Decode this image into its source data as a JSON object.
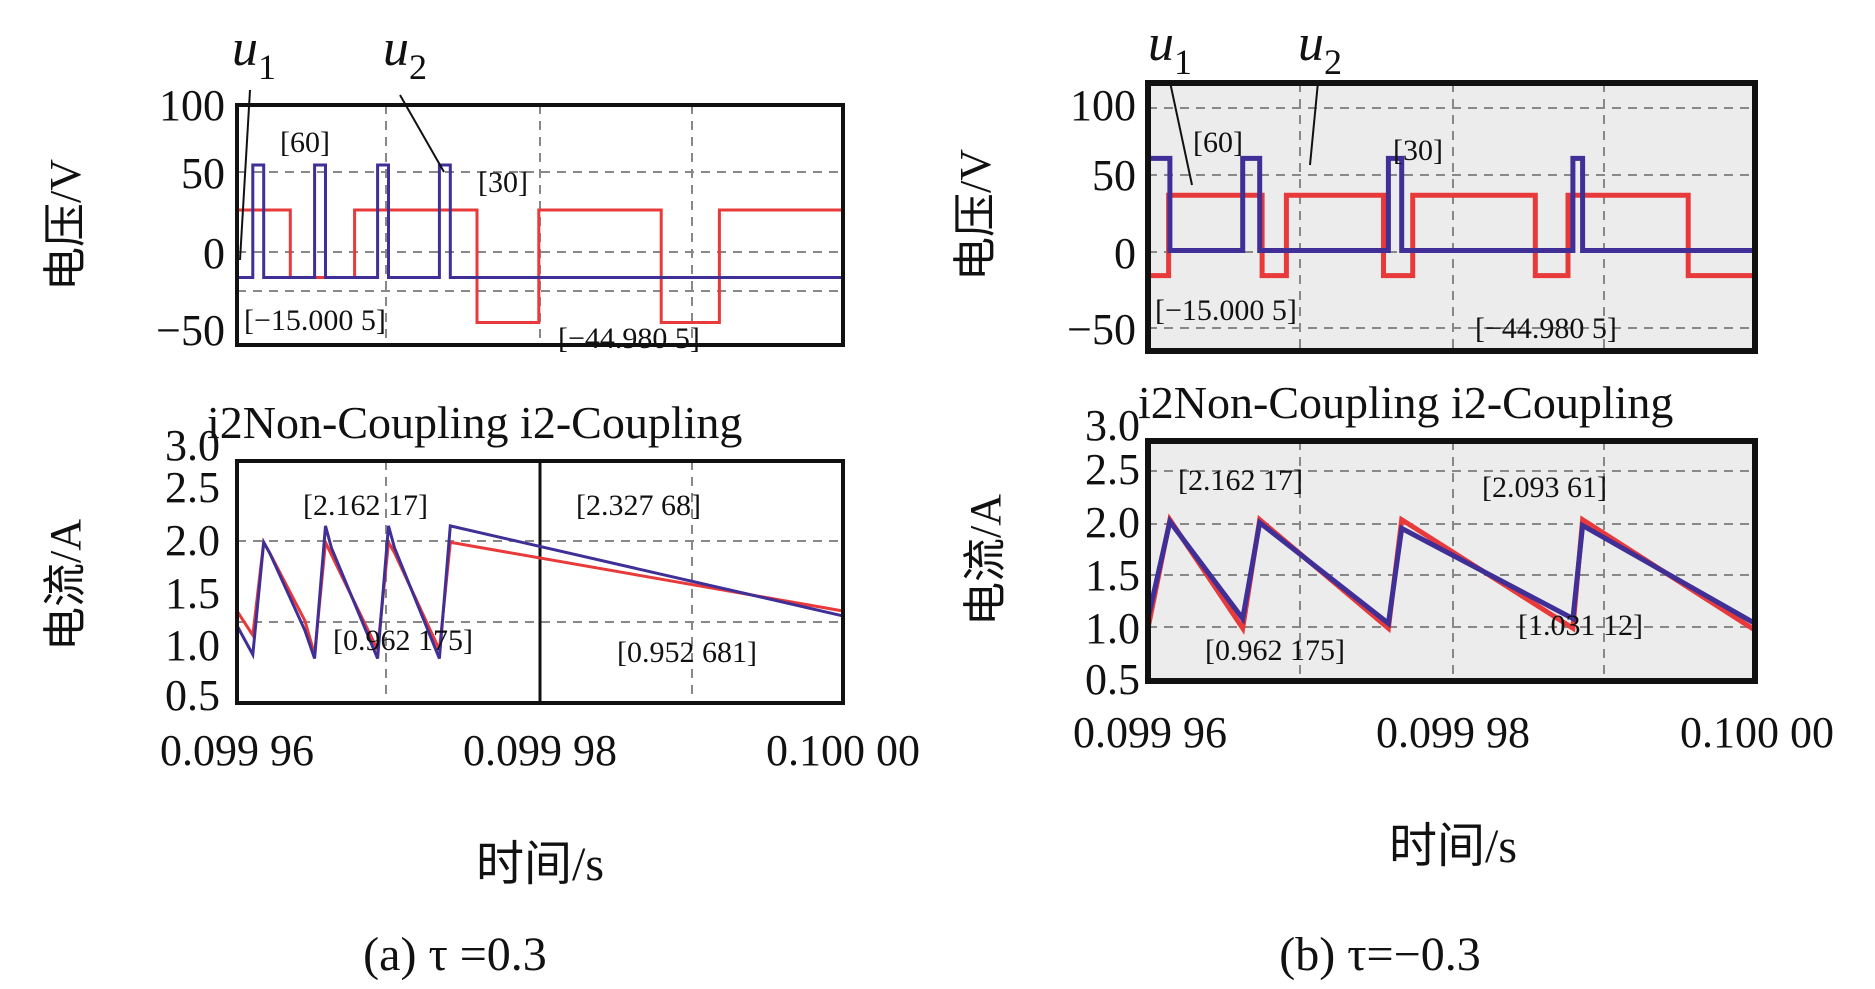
{
  "colors": {
    "u1": "#e83a3a",
    "u2": "#3f2f96",
    "axis": "#111111",
    "grid": "#888888"
  },
  "labels": {
    "u1_main": "u",
    "u1_sub": "1",
    "u2_main": "u",
    "u2_sub": "2",
    "legend": "i2Non-Coupling i2-Coupling"
  },
  "chart_data": [
    {
      "type": "line",
      "panel": "a",
      "caption": "(a) τ =0.3",
      "ylabel": "电压/V",
      "ylim": [
        -60,
        100
      ],
      "yticks": [
        "100",
        "50",
        "0",
        "−50"
      ],
      "xlim": [
        0.09995,
        0.1
      ],
      "series": [
        {
          "name": "u1",
          "x": [
            0.09995,
            0.0999544,
            0.0999544,
            0.0999597,
            0.0999597,
            0.0999698,
            0.0999698,
            0.0999749,
            0.0999749,
            0.099985,
            0.099985,
            0.0999898,
            0.0999898,
            0.1
          ],
          "y": [
            30,
            30,
            -15,
            -15,
            30,
            30,
            -45,
            -45,
            30,
            30,
            -45,
            -45,
            30,
            30
          ]
        },
        {
          "name": "u2",
          "x": [
            0.09995,
            0.0999513,
            0.0999513,
            0.0999522,
            0.0999522,
            0.0999564,
            0.0999564,
            0.0999573,
            0.0999573,
            0.0999616,
            0.0999616,
            0.0999625,
            0.0999625,
            0.0999667,
            0.0999667,
            0.0999676,
            0.0999676,
            0.1
          ],
          "y": [
            -15,
            -15,
            60,
            60,
            -15,
            -15,
            60,
            60,
            -15,
            -15,
            60,
            60,
            -15,
            -15,
            60,
            60,
            -15,
            -15
          ]
        }
      ],
      "annotations": [
        "[60]",
        "[30]",
        "[−15.000 5]",
        "[−44.980 5]"
      ]
    },
    {
      "type": "line",
      "panel": "a",
      "ylabel": "电流/A",
      "xlabel": "时间/s",
      "ylim": [
        0.5,
        3.0
      ],
      "yticks": [
        "3.0",
        "2.5",
        "2.0",
        "1.5",
        "1.0",
        "0.5"
      ],
      "xlim": [
        0.09995,
        0.1
      ],
      "xticks": [
        "0.099 96",
        "0.099 98",
        "0.100 00"
      ],
      "series": [
        {
          "name": "i2Non-Coupling",
          "x": [
            0.09995,
            0.0999513,
            0.0999522,
            0.0999527,
            0.0999556,
            0.0999564,
            0.0999573,
            0.0999578,
            0.0999616,
            0.0999625,
            0.099963,
            0.0999667,
            0.0999676,
            0.1
          ],
          "y": [
            1.45,
            1.2,
            2.16,
            2.05,
            1.35,
            1.0,
            2.16,
            2.03,
            1.05,
            2.16,
            2.05,
            1.05,
            2.16,
            1.45
          ]
        },
        {
          "name": "i2-Coupling",
          "x": [
            0.09995,
            0.0999513,
            0.0999522,
            0.0999527,
            0.0999556,
            0.0999564,
            0.0999573,
            0.0999578,
            0.0999616,
            0.0999625,
            0.099963,
            0.0999667,
            0.0999676,
            0.1
          ],
          "y": [
            1.3,
            1.0,
            2.16,
            2.05,
            1.25,
            0.96,
            2.33,
            2.1,
            0.96,
            2.33,
            2.1,
            0.96,
            2.33,
            1.4
          ]
        }
      ],
      "annotations": [
        "[2.162 17]",
        "[2.327 68]",
        "[0.962 175]",
        "[0.952 681]"
      ]
    },
    {
      "type": "line",
      "panel": "b",
      "caption": "(b) τ=−0.3",
      "ylabel": "电压/V",
      "ylim": [
        -60,
        100
      ],
      "yticks": [
        "100",
        "50",
        "0",
        "−50"
      ],
      "xlim": [
        0.09995,
        0.1
      ],
      "series": [
        {
          "name": "u1",
          "x": [
            0.09995,
            0.0999517,
            0.0999517,
            0.0999594,
            0.0999594,
            0.0999614,
            0.0999614,
            0.0999694,
            0.0999694,
            0.0999718,
            0.0999718,
            0.0999819,
            0.0999819,
            0.0999846,
            0.0999846,
            0.0999945,
            0.0999945,
            0.1
          ],
          "y": [
            -15,
            -15,
            33,
            33,
            -15,
            -15,
            33,
            33,
            -15,
            -15,
            33,
            33,
            -15,
            -15,
            33,
            33,
            -15,
            -15
          ]
        },
        {
          "name": "u2",
          "x": [
            0.09995,
            0.0999518,
            0.0999518,
            0.0999578,
            0.0999578,
            0.0999592,
            0.0999592,
            0.0999698,
            0.0999698,
            0.0999709,
            0.0999709,
            0.099985,
            0.099985,
            0.0999858,
            0.0999858,
            0.1
          ],
          "y": [
            55,
            55,
            0,
            0,
            55,
            55,
            0,
            0,
            55,
            55,
            0,
            0,
            55,
            55,
            0,
            0
          ]
        }
      ],
      "annotations": [
        "[60]",
        "[30]",
        "[−15.000 5]",
        "[−44.980 5]"
      ]
    },
    {
      "type": "line",
      "panel": "b",
      "ylabel": "电流/A",
      "xlabel": "时间/s",
      "ylim": [
        0.5,
        3.0
      ],
      "yticks": [
        "3.0",
        "2.5",
        "2.0",
        "1.5",
        "1.0",
        "0.5"
      ],
      "xlim": [
        0.09995,
        0.1
      ],
      "xticks": [
        "0.099 96",
        "0.099 98",
        "0.100 00"
      ],
      "series": [
        {
          "name": "i2Non-Coupling",
          "x": [
            0.09995,
            0.0999518,
            0.0999578,
            0.0999592,
            0.0999698,
            0.0999709,
            0.099985,
            0.0999858,
            0.1
          ],
          "y": [
            1.05,
            2.18,
            1.05,
            2.18,
            1.05,
            2.18,
            1.05,
            2.18,
            1.03
          ]
        },
        {
          "name": "i2-Coupling",
          "x": [
            0.09995,
            0.0999518,
            0.0999578,
            0.0999592,
            0.0999698,
            0.0999709,
            0.099985,
            0.0999858,
            0.1
          ],
          "y": [
            1.15,
            2.16,
            1.15,
            2.15,
            1.1,
            2.09,
            1.15,
            2.12,
            1.1
          ]
        }
      ],
      "annotations": [
        "[2.162 17]",
        "[2.093 61]",
        "[0.962 175]",
        "[1.031 12]"
      ]
    }
  ]
}
